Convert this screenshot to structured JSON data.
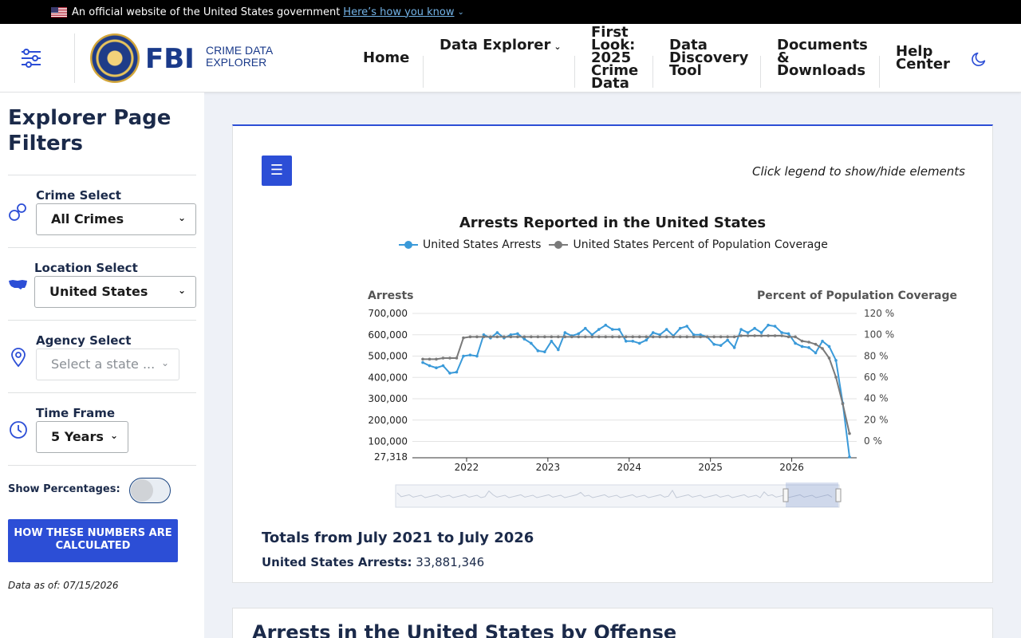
{
  "gov_banner": {
    "text": "An official website of the United States government",
    "link": "Here’s how you know"
  },
  "header": {
    "logo_wordmark": "FBI",
    "logo_sub_line1": "CRIME DATA",
    "logo_sub_line2": "EXPLORER",
    "nav": {
      "home": "Home",
      "data_explorer": "Data Explorer",
      "first_look": [
        "First",
        "Look:",
        "2025",
        "Crime",
        "Data"
      ],
      "data_discovery": [
        "Data",
        "Discovery",
        "Tool"
      ],
      "documents": [
        "Documents",
        "&",
        "Downloads"
      ],
      "help": [
        "Help",
        "Center"
      ]
    }
  },
  "sidebar": {
    "title": "Explorer Page Filters",
    "crime_label": "Crime Select",
    "crime_value": "All Crimes",
    "location_label": "Location Select",
    "location_value": "United States",
    "agency_label": "Agency Select",
    "agency_placeholder": "Select a state ...",
    "timeframe_label": "Time Frame",
    "timeframe_value": "5 Years",
    "show_percentages_label": "Show Percentages:",
    "show_percentages_on": false,
    "how_button": "HOW THESE NUMBERS ARE CALCULATED",
    "data_as_of": "Data as of: 07/15/2026"
  },
  "card": {
    "legend_hint": "Click legend to show/hide elements",
    "totals_title": "Totals from July 2021 to July 2026",
    "totals_label": "United States Arrests:",
    "totals_value": "33,881,346"
  },
  "chart_data": {
    "type": "line",
    "title": "Arrests Reported in the United States",
    "legend_placement": "top-center",
    "y_left_label": "Arrests",
    "y_right_label": "Percent of Population Coverage",
    "y_left_ticks": [
      "700,000",
      "600,000",
      "500,000",
      "400,000",
      "300,000",
      "200,000",
      "100,000",
      "27,318"
    ],
    "y_right_ticks": [
      "120 %",
      "100 %",
      "80 %",
      "60 %",
      "40 %",
      "20 %",
      "0 %"
    ],
    "x_ticks": [
      "2022",
      "2023",
      "2024",
      "2025",
      "2026"
    ],
    "ylim_left": [
      27318,
      700000
    ],
    "ylim_right": [
      -15,
      120
    ],
    "x_start_year": 2021.5,
    "series": [
      {
        "name": "United States Arrests",
        "color": "#3a9ad9",
        "axis": "left",
        "values": [
          470000,
          455000,
          445000,
          455000,
          420000,
          425000,
          500000,
          505000,
          500000,
          600000,
          585000,
          610000,
          585000,
          600000,
          605000,
          580000,
          560000,
          525000,
          520000,
          570000,
          530000,
          610000,
          595000,
          605000,
          630000,
          600000,
          625000,
          645000,
          625000,
          625000,
          570000,
          570000,
          560000,
          575000,
          610000,
          600000,
          625000,
          595000,
          630000,
          640000,
          600000,
          600000,
          590000,
          555000,
          550000,
          575000,
          540000,
          625000,
          610000,
          630000,
          610000,
          645000,
          640000,
          610000,
          605000,
          560000,
          545000,
          540000,
          515000,
          570000,
          545000,
          480000,
          280000,
          27318
        ]
      },
      {
        "name": "United States Percent of Population Coverage",
        "color": "#7a7a7a",
        "axis": "right",
        "values": [
          77,
          77,
          77,
          78,
          78,
          78,
          97,
          98,
          98,
          98,
          98,
          98,
          98,
          98,
          98,
          98,
          98,
          98,
          98,
          98,
          98,
          98,
          98,
          98,
          98,
          98,
          98,
          98,
          98,
          98,
          98,
          98,
          98,
          98,
          98,
          98,
          98,
          98,
          98,
          98,
          98,
          98,
          98,
          98,
          98,
          98,
          98,
          99,
          99,
          99,
          99,
          99,
          99,
          99,
          98,
          98,
          94,
          93,
          91,
          87,
          78,
          60,
          35,
          7
        ]
      }
    ]
  },
  "second_card": {
    "title": "Arrests in the United States by Offense"
  }
}
